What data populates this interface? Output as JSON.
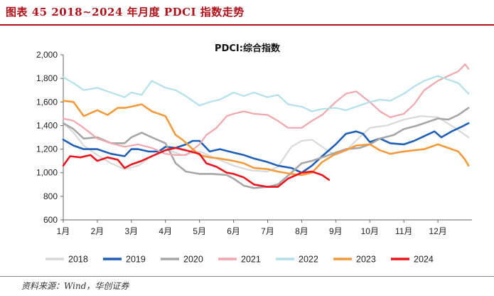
{
  "header": {
    "figure_title": "图表 45  2018~2024 年月度 PDCI 指数走势"
  },
  "source": "资料来源：Wind，华创证券",
  "chart_data": {
    "type": "line",
    "title": "PDCI:综合指数",
    "xlabel": "",
    "ylabel": "",
    "categories": [
      "1月",
      "2月",
      "3月",
      "4月",
      "5月",
      "6月",
      "7月",
      "8月",
      "9月",
      "10月",
      "11月",
      "12月"
    ],
    "ylim": [
      600,
      2000
    ],
    "yticks": [
      600,
      800,
      1000,
      1200,
      1400,
      1600,
      1800,
      2000
    ],
    "ytick_labels": [
      "600",
      "800",
      "1,000",
      "1,200",
      "1,400",
      "1,600",
      "1,800",
      "2,000"
    ],
    "legend_position": "bottom",
    "series": [
      {
        "name": "2018",
        "color": "#d9d9d9",
        "x": [
          1,
          1.3,
          1.6,
          2,
          2.4,
          2.8,
          3.2,
          3.5,
          4,
          4.5,
          5,
          5.5,
          6,
          6.5,
          7,
          7.3,
          7.7,
          8,
          8.3,
          8.7,
          9,
          9.3,
          9.7,
          10,
          10.5,
          11,
          11.5,
          12,
          12.5,
          12.9
        ],
        "y": [
          1420,
          1340,
          1230,
          1150,
          1080,
          1030,
          1060,
          1120,
          1200,
          1150,
          1180,
          1120,
          1060,
          1020,
          1010,
          1050,
          1220,
          1270,
          1280,
          1200,
          1150,
          1190,
          1300,
          1380,
          1400,
          1450,
          1480,
          1470,
          1380,
          1300
        ]
      },
      {
        "name": "2019",
        "color": "#1f5fb5",
        "x": [
          1,
          1.3,
          1.6,
          2,
          2.4,
          2.8,
          3,
          3.2,
          3.5,
          3.8,
          4,
          4.3,
          4.6,
          4.8,
          5,
          5.3,
          5.6,
          6,
          6.3,
          6.6,
          7,
          7.3,
          7.7,
          8,
          8.3,
          8.6,
          9,
          9.3,
          9.6,
          9.8,
          10,
          10.3,
          10.6,
          11,
          11.3,
          11.6,
          11.9,
          12.1,
          12.4,
          12.7,
          12.9
        ],
        "y": [
          1280,
          1230,
          1200,
          1200,
          1160,
          1140,
          1200,
          1200,
          1180,
          1180,
          1220,
          1210,
          1240,
          1270,
          1270,
          1180,
          1200,
          1170,
          1150,
          1120,
          1090,
          1060,
          1040,
          1000,
          1060,
          1140,
          1240,
          1330,
          1350,
          1330,
          1260,
          1290,
          1250,
          1240,
          1270,
          1310,
          1350,
          1300,
          1350,
          1390,
          1420
        ]
      },
      {
        "name": "2020",
        "color": "#a6a6a6",
        "x": [
          1,
          1.3,
          1.6,
          2,
          2.4,
          2.8,
          3,
          3.3,
          3.6,
          4,
          4.3,
          4.6,
          5,
          5.4,
          5.8,
          6,
          6.3,
          6.6,
          7,
          7.3,
          7.7,
          8,
          8.3,
          8.7,
          9,
          9.3,
          9.7,
          10,
          10.3,
          10.7,
          11,
          11.4,
          11.8,
          12,
          12.3,
          12.6,
          12.9
        ],
        "y": [
          1420,
          1370,
          1290,
          1300,
          1250,
          1250,
          1300,
          1340,
          1300,
          1250,
          1080,
          1010,
          990,
          990,
          980,
          950,
          890,
          870,
          880,
          900,
          1000,
          1080,
          1100,
          1140,
          1170,
          1200,
          1210,
          1240,
          1290,
          1320,
          1370,
          1400,
          1440,
          1460,
          1450,
          1490,
          1550
        ]
      },
      {
        "name": "2021",
        "color": "#f0a7ae",
        "x": [
          1,
          1.3,
          1.6,
          2,
          2.4,
          2.8,
          3.2,
          3.6,
          4,
          4.3,
          4.6,
          5,
          5.2,
          5.5,
          5.8,
          6,
          6.3,
          6.6,
          7,
          7.3,
          7.6,
          8,
          8.3,
          8.6,
          9,
          9.3,
          9.6,
          10,
          10.3,
          10.6,
          11,
          11.3,
          11.6,
          12,
          12.3,
          12.6,
          12.8,
          12.9
        ],
        "y": [
          1460,
          1440,
          1380,
          1290,
          1250,
          1220,
          1240,
          1210,
          1160,
          1150,
          1150,
          1240,
          1320,
          1380,
          1480,
          1500,
          1520,
          1500,
          1490,
          1440,
          1380,
          1380,
          1440,
          1490,
          1600,
          1670,
          1690,
          1600,
          1520,
          1470,
          1500,
          1580,
          1700,
          1780,
          1820,
          1860,
          1920,
          1880
        ]
      },
      {
        "name": "2022",
        "color": "#b3e0ea",
        "x": [
          1,
          1.3,
          1.6,
          2,
          2.4,
          2.8,
          3,
          3.3,
          3.6,
          4,
          4.3,
          4.6,
          5,
          5.3,
          5.6,
          6,
          6.3,
          6.6,
          7,
          7.3,
          7.6,
          8,
          8.3,
          8.6,
          9,
          9.3,
          9.6,
          10,
          10.3,
          10.6,
          11,
          11.3,
          11.6,
          12,
          12.3,
          12.6,
          12.9
        ],
        "y": [
          1810,
          1760,
          1700,
          1720,
          1680,
          1640,
          1680,
          1660,
          1780,
          1720,
          1700,
          1650,
          1570,
          1600,
          1620,
          1680,
          1650,
          1680,
          1640,
          1660,
          1580,
          1560,
          1520,
          1540,
          1550,
          1530,
          1560,
          1600,
          1620,
          1610,
          1670,
          1730,
          1780,
          1820,
          1790,
          1760,
          1670
        ]
      },
      {
        "name": "2023",
        "color": "#f39a3c",
        "x": [
          1,
          1.3,
          1.6,
          2,
          2.3,
          2.6,
          2.8,
          3,
          3.3,
          3.6,
          4,
          4.3,
          4.5,
          4.8,
          5,
          5.3,
          5.6,
          6,
          6.3,
          6.6,
          7,
          7.3,
          7.7,
          8,
          8.3,
          8.6,
          9,
          9.3,
          9.6,
          10,
          10.3,
          10.6,
          11,
          11.3,
          11.6,
          12,
          12.3,
          12.6,
          12.8,
          12.9
        ],
        "y": [
          1610,
          1600,
          1480,
          1530,
          1490,
          1550,
          1550,
          1560,
          1580,
          1520,
          1480,
          1320,
          1280,
          1200,
          1150,
          1130,
          1120,
          1100,
          1080,
          1040,
          1030,
          1010,
          990,
          980,
          1000,
          1090,
          1160,
          1190,
          1230,
          1240,
          1190,
          1160,
          1180,
          1190,
          1200,
          1240,
          1210,
          1180,
          1110,
          1060
        ]
      },
      {
        "name": "2024",
        "color": "#e8161f",
        "x": [
          1,
          1.2,
          1.5,
          1.8,
          2,
          2.3,
          2.6,
          2.8,
          3,
          3.3,
          3.6,
          4,
          4.3,
          4.6,
          5,
          5.2,
          5.5,
          5.8,
          6,
          6.3,
          6.6,
          7,
          7.3,
          7.6,
          8,
          8.3,
          8.6,
          8.8
        ],
        "y": [
          1060,
          1140,
          1130,
          1150,
          1100,
          1130,
          1110,
          1040,
          1070,
          1100,
          1140,
          1190,
          1210,
          1190,
          1160,
          1080,
          1050,
          1000,
          990,
          960,
          900,
          880,
          880,
          950,
          1000,
          1010,
          980,
          940
        ]
      }
    ]
  }
}
